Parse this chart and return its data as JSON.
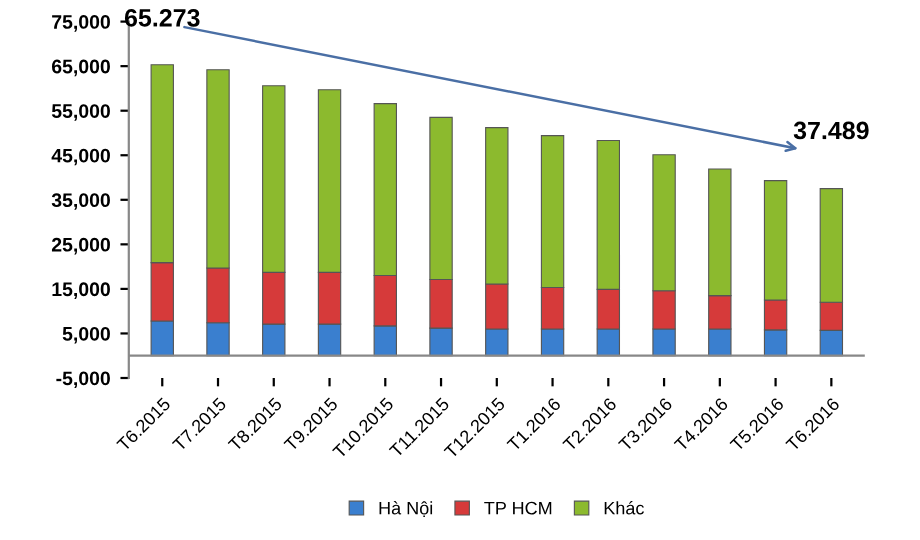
{
  "chart_data": {
    "type": "bar",
    "stacked": true,
    "categories": [
      "T6.2015",
      "T7.2015",
      "T8.2015",
      "T9.2015",
      "T10.2015",
      "T11.2015",
      "T12.2015",
      "T1.2016",
      "T2.2016",
      "T3.2016",
      "T4.2016",
      "T5.2016",
      "T6.2016"
    ],
    "series": [
      {
        "name": "Hà Nội",
        "color": "#3a7fcf",
        "values": [
          7800,
          7400,
          7100,
          7100,
          6700,
          6200,
          6000,
          6000,
          6000,
          6000,
          6000,
          5800,
          5700
        ]
      },
      {
        "name": "TP HCM",
        "color": "#d63a3a",
        "values": [
          13100,
          12300,
          11600,
          11600,
          11300,
          10900,
          10100,
          9300,
          8900,
          8600,
          7500,
          6700,
          6300
        ]
      },
      {
        "name": "Khác",
        "color": "#8cba2e",
        "values": [
          44400,
          44500,
          41900,
          41000,
          38600,
          36400,
          35100,
          34100,
          33400,
          30500,
          28400,
          26800,
          25500
        ]
      }
    ],
    "ylim": [
      -5000,
      75000
    ],
    "yticks": [
      {
        "value": -5000,
        "label": "-5,000"
      },
      {
        "value": 5000,
        "label": "5,000"
      },
      {
        "value": 15000,
        "label": "15,000"
      },
      {
        "value": 25000,
        "label": "25,000"
      },
      {
        "value": 35000,
        "label": "35,000"
      },
      {
        "value": 45000,
        "label": "45,000"
      },
      {
        "value": 55000,
        "label": "55,000"
      },
      {
        "value": 65000,
        "label": "65,000"
      },
      {
        "value": 75000,
        "label": "75,000"
      }
    ],
    "annotations": [
      {
        "text": "65.273",
        "x": "T6.2015",
        "y": 65273
      },
      {
        "text": "37.489",
        "x": "T6.2016",
        "y": 37489
      }
    ],
    "legend": "bottom",
    "grid": false
  }
}
